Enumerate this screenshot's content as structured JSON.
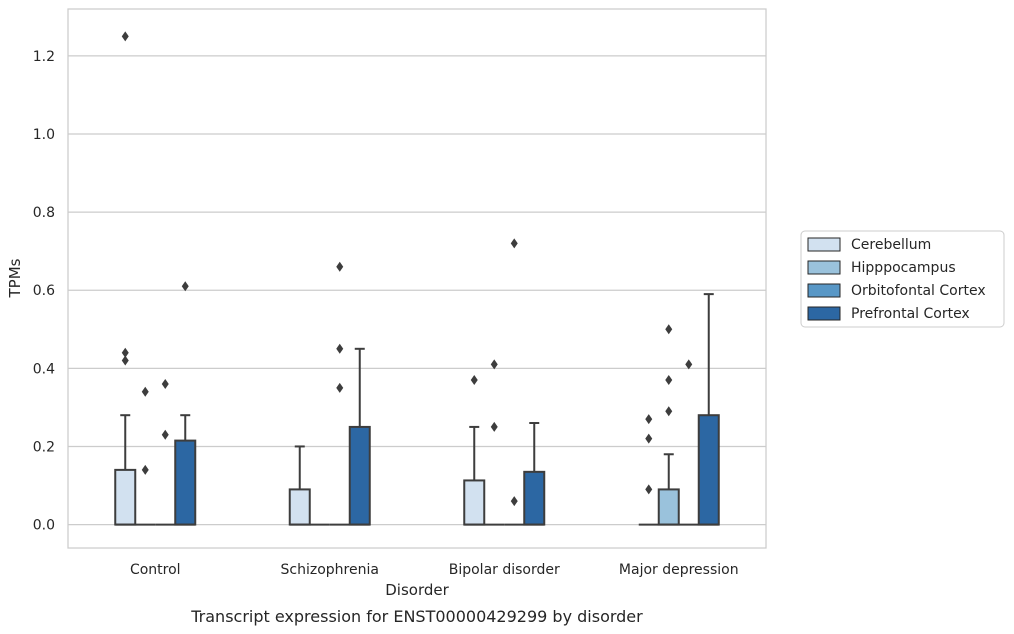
{
  "caption": "Transcript expression for ENST00000429299 by disorder",
  "chart_data": {
    "type": "box",
    "title": "",
    "xlabel": "Disorder",
    "ylabel": "TPMs",
    "ylim": [
      -0.06,
      1.32
    ],
    "yticks": [
      "0.0",
      "0.2",
      "0.4",
      "0.6",
      "0.8",
      "1.0",
      "1.2"
    ],
    "ytick_values": [
      0.0,
      0.2,
      0.4,
      0.6,
      0.8,
      1.0,
      1.2
    ],
    "grid": true,
    "legend_position": "right",
    "categories": [
      "Control",
      "Schizophrenia",
      "Bipolar disorder",
      "Major depression"
    ],
    "series": [
      {
        "name": "Cerebellum",
        "color": "#d2e1f0",
        "boxes": [
          {
            "q1": 0,
            "median": 0,
            "q3": 0.14,
            "whisker_low": 0,
            "whisker_high": 0.28,
            "outliers": [
              0.42,
              0.44,
              1.25
            ]
          },
          {
            "q1": 0,
            "median": 0,
            "q3": 0.09,
            "whisker_low": 0,
            "whisker_high": 0.2,
            "outliers": []
          },
          {
            "q1": 0,
            "median": 0,
            "q3": 0.113,
            "whisker_low": 0,
            "whisker_high": 0.25,
            "outliers": [
              0.37
            ]
          },
          {
            "q1": 0,
            "median": 0,
            "q3": 0,
            "whisker_low": 0,
            "whisker_high": 0,
            "outliers": [
              0.09,
              0.22,
              0.27
            ]
          }
        ]
      },
      {
        "name": "Hipppocampus",
        "color": "#9ac2dc",
        "boxes": [
          {
            "q1": 0,
            "median": 0,
            "q3": 0,
            "whisker_low": 0,
            "whisker_high": 0,
            "outliers": [
              0.14,
              0.34
            ]
          },
          {
            "q1": 0,
            "median": 0,
            "q3": 0,
            "whisker_low": 0,
            "whisker_high": 0,
            "outliers": []
          },
          {
            "q1": 0,
            "median": 0,
            "q3": 0,
            "whisker_low": 0,
            "whisker_high": 0,
            "outliers": [
              0.25,
              0.41
            ]
          },
          {
            "q1": 0,
            "median": 0,
            "q3": 0.09,
            "whisker_low": 0,
            "whisker_high": 0.18,
            "outliers": [
              0.29,
              0.37,
              0.5
            ]
          }
        ]
      },
      {
        "name": "Orbitofontal Cortex",
        "color": "#5897c6",
        "boxes": [
          {
            "q1": 0,
            "median": 0,
            "q3": 0,
            "whisker_low": 0,
            "whisker_high": 0,
            "outliers": [
              0.23,
              0.36
            ]
          },
          {
            "q1": 0,
            "median": 0,
            "q3": 0,
            "whisker_low": 0,
            "whisker_high": 0,
            "outliers": [
              0.35,
              0.45,
              0.66
            ]
          },
          {
            "q1": 0,
            "median": 0,
            "q3": 0,
            "whisker_low": 0,
            "whisker_high": 0,
            "outliers": [
              0.06,
              0.72
            ]
          },
          {
            "q1": 0,
            "median": 0,
            "q3": 0,
            "whisker_low": 0,
            "whisker_high": 0,
            "outliers": [
              0.41
            ]
          }
        ]
      },
      {
        "name": "Prefrontal Cortex",
        "color": "#2c67a3",
        "boxes": [
          {
            "q1": 0,
            "median": 0,
            "q3": 0.215,
            "whisker_low": 0,
            "whisker_high": 0.28,
            "outliers": [
              0.61
            ]
          },
          {
            "q1": 0,
            "median": 0,
            "q3": 0.25,
            "whisker_low": 0,
            "whisker_high": 0.45,
            "outliers": []
          },
          {
            "q1": 0,
            "median": 0,
            "q3": 0.135,
            "whisker_low": 0,
            "whisker_high": 0.26,
            "outliers": []
          },
          {
            "q1": 0,
            "median": 0,
            "q3": 0.28,
            "whisker_low": 0,
            "whisker_high": 0.59,
            "outliers": []
          }
        ]
      }
    ]
  }
}
